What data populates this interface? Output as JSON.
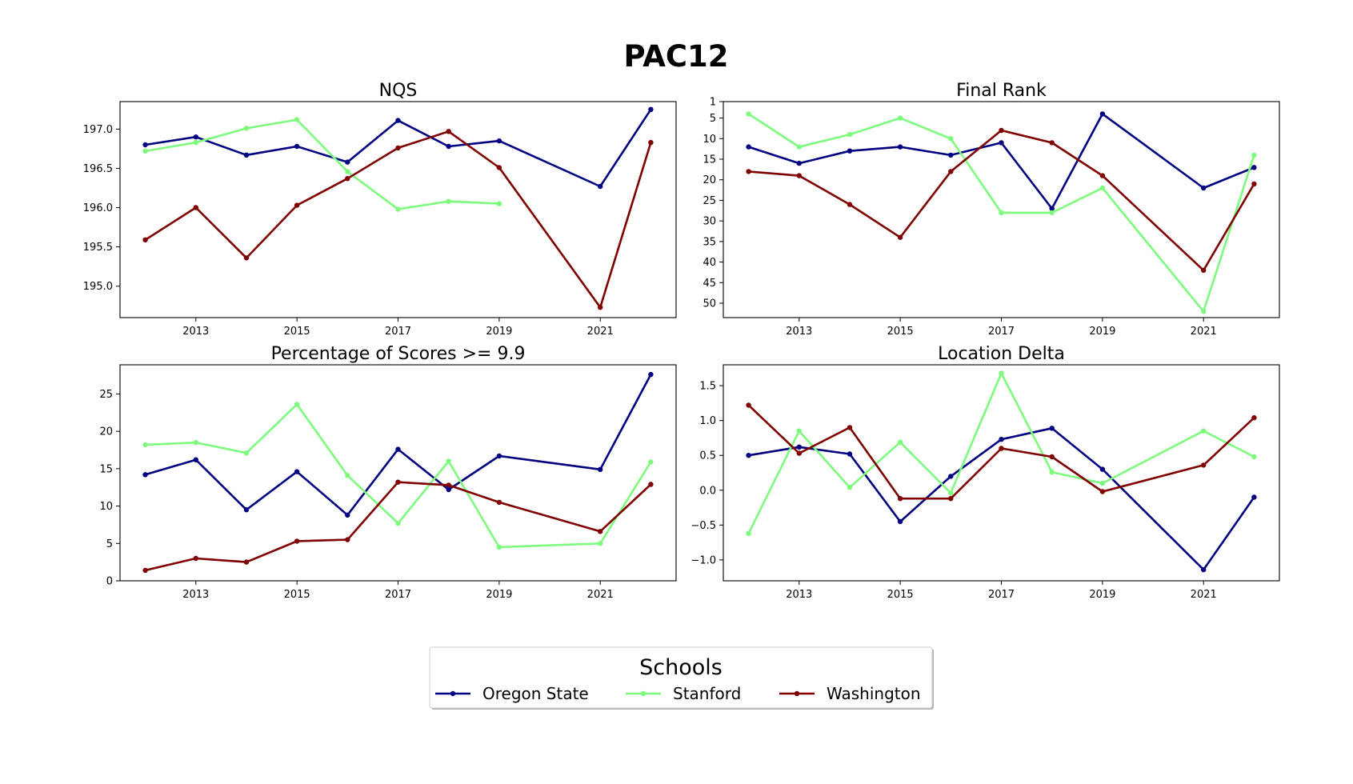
{
  "figure": {
    "title": "PAC12",
    "legend_title": "Schools",
    "legend_placement": "bottom-center"
  },
  "series_styles": [
    {
      "name": "Oregon State",
      "color": "#000080"
    },
    {
      "name": "Stanford",
      "color": "#7dfb7d"
    },
    {
      "name": "Washington",
      "color": "#800000"
    }
  ],
  "chart_data": [
    {
      "type": "line",
      "title": "NQS",
      "xlabel": "",
      "ylabel": "",
      "x": [
        2012,
        2013,
        2014,
        2015,
        2016,
        2017,
        2018,
        2019,
        2021,
        2022
      ],
      "xticks": [
        2013,
        2015,
        2017,
        2019,
        2021
      ],
      "xlim": [
        2011.5,
        2022.5
      ],
      "ylim": [
        194.6,
        197.35
      ],
      "yticks": [
        195.0,
        195.5,
        196.0,
        196.5,
        197.0
      ],
      "ytick_labels": [
        "195.0",
        "195.5",
        "196.0",
        "196.5",
        "197.0"
      ],
      "y_inverted": false,
      "grid": false,
      "series": [
        {
          "name": "Oregon State",
          "values": [
            196.8,
            196.9,
            196.67,
            196.78,
            196.58,
            197.11,
            196.78,
            196.85,
            196.27,
            197.25
          ]
        },
        {
          "name": "Stanford",
          "values": [
            196.72,
            196.83,
            197.01,
            197.12,
            196.46,
            195.98,
            196.08,
            196.05,
            null,
            null
          ]
        },
        {
          "name": "Washington",
          "values": [
            195.59,
            196.0,
            195.36,
            196.03,
            196.37,
            196.76,
            196.97,
            196.51,
            194.73,
            196.83
          ]
        }
      ]
    },
    {
      "type": "line",
      "title": "Final Rank",
      "xlabel": "",
      "ylabel": "",
      "x": [
        2012,
        2013,
        2014,
        2015,
        2016,
        2017,
        2018,
        2019,
        2021,
        2022
      ],
      "xticks": [
        2013,
        2015,
        2017,
        2019,
        2021
      ],
      "xlim": [
        2011.5,
        2022.5
      ],
      "ylim": [
        1,
        53.5
      ],
      "yticks": [
        1,
        5,
        10,
        15,
        20,
        25,
        30,
        35,
        40,
        45,
        50
      ],
      "ytick_labels": [
        "1",
        "5",
        "10",
        "15",
        "20",
        "25",
        "30",
        "35",
        "40",
        "45",
        "50"
      ],
      "y_inverted": true,
      "grid": false,
      "series": [
        {
          "name": "Oregon State",
          "values": [
            12,
            16,
            13,
            12,
            14,
            11,
            27,
            4,
            22,
            17
          ]
        },
        {
          "name": "Stanford",
          "values": [
            4,
            12,
            9,
            5,
            10,
            28,
            28,
            22,
            52,
            14
          ]
        },
        {
          "name": "Washington",
          "values": [
            18,
            19,
            26,
            34,
            18,
            8,
            11,
            19,
            42,
            21
          ]
        }
      ]
    },
    {
      "type": "line",
      "title": "Percentage of Scores >= 9.9",
      "xlabel": "",
      "ylabel": "",
      "x": [
        2012,
        2013,
        2014,
        2015,
        2016,
        2017,
        2018,
        2019,
        2021,
        2022
      ],
      "xticks": [
        2013,
        2015,
        2017,
        2019,
        2021
      ],
      "xlim": [
        2011.5,
        2022.5
      ],
      "ylim": [
        0,
        28.9
      ],
      "yticks": [
        0,
        5,
        10,
        15,
        20,
        25
      ],
      "ytick_labels": [
        "0",
        "5",
        "10",
        "15",
        "20",
        "25"
      ],
      "y_inverted": false,
      "grid": false,
      "series": [
        {
          "name": "Oregon State",
          "values": [
            14.2,
            16.2,
            9.5,
            14.6,
            8.8,
            17.6,
            12.2,
            16.7,
            14.9,
            27.6
          ]
        },
        {
          "name": "Stanford",
          "values": [
            18.2,
            18.5,
            17.1,
            23.6,
            14.1,
            7.7,
            16.0,
            4.5,
            5.0,
            15.9
          ]
        },
        {
          "name": "Washington",
          "values": [
            1.4,
            3.0,
            2.5,
            5.3,
            5.5,
            13.2,
            12.8,
            10.5,
            6.6,
            12.9
          ]
        }
      ]
    },
    {
      "type": "line",
      "title": "Location Delta",
      "xlabel": "",
      "ylabel": "",
      "x": [
        2012,
        2013,
        2014,
        2015,
        2016,
        2017,
        2018,
        2019,
        2021,
        2022
      ],
      "xticks": [
        2013,
        2015,
        2017,
        2019,
        2021
      ],
      "xlim": [
        2011.5,
        2022.5
      ],
      "ylim": [
        -1.3,
        1.8
      ],
      "yticks": [
        -1.0,
        -0.5,
        0.0,
        0.5,
        1.0,
        1.5
      ],
      "ytick_labels": [
        "−1.0",
        "−0.5",
        "0.0",
        "0.5",
        "1.0",
        "1.5"
      ],
      "y_inverted": false,
      "grid": false,
      "series": [
        {
          "name": "Oregon State",
          "values": [
            0.5,
            0.62,
            0.52,
            -0.45,
            0.2,
            0.73,
            0.89,
            0.3,
            -1.14,
            -0.1
          ]
        },
        {
          "name": "Stanford",
          "values": [
            -0.62,
            0.85,
            0.04,
            0.69,
            -0.04,
            1.68,
            0.26,
            0.1,
            0.85,
            0.48
          ]
        },
        {
          "name": "Washington",
          "values": [
            1.22,
            0.53,
            0.9,
            -0.12,
            -0.12,
            0.6,
            0.48,
            -0.02,
            0.36,
            1.04
          ]
        }
      ]
    }
  ]
}
